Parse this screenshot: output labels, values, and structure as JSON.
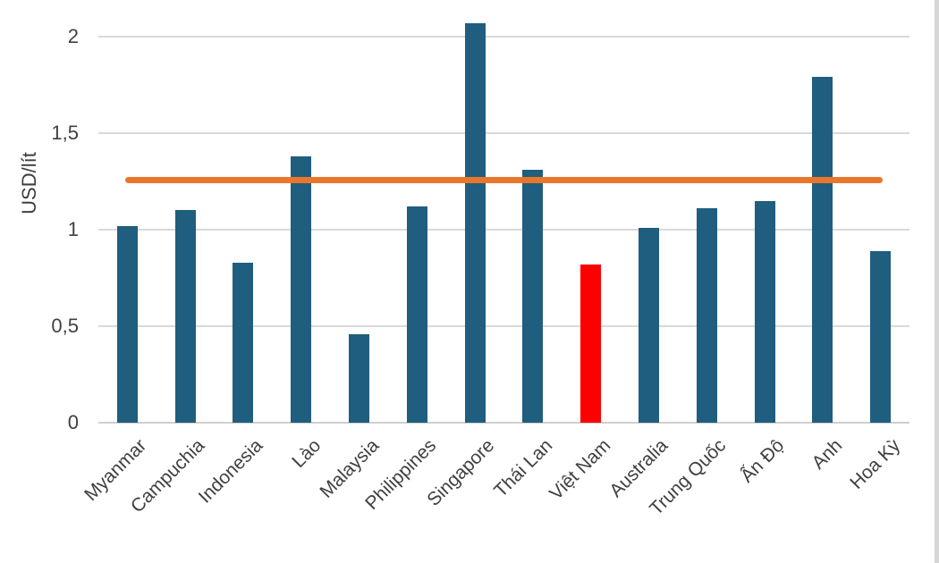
{
  "chart_data": {
    "type": "bar",
    "title": "",
    "xlabel": "",
    "ylabel": "USD/lít",
    "categories": [
      "Myanmar",
      "Campuchia",
      "Indonesia",
      "Lào",
      "Malaysia",
      "Philippines",
      "Singapore",
      "Thái Lan",
      "Việt Nam",
      "Australia",
      "Trung Quốc",
      "Ấn Độ",
      "Anh",
      "Hoa Kỳ"
    ],
    "values": [
      1.02,
      1.1,
      0.83,
      1.38,
      0.46,
      1.12,
      2.07,
      1.31,
      0.82,
      1.01,
      1.11,
      1.15,
      1.79,
      0.89
    ],
    "highlighted_category": "Việt Nam",
    "reference_line": {
      "value": 1.26
    },
    "yticks": [
      {
        "value": 0,
        "label": "0"
      },
      {
        "value": 0.5,
        "label": "0,5"
      },
      {
        "value": 1,
        "label": "1"
      },
      {
        "value": 1.5,
        "label": "1,5"
      },
      {
        "value": 2,
        "label": "2"
      }
    ],
    "ylim": [
      0,
      2.16
    ],
    "grid": true,
    "legend_position": "none",
    "colors": {
      "bar": "#1f5e7e",
      "highlight": "#ff0000",
      "reference_line": "#e8772c",
      "gridline": "#d9d9d9",
      "axis_line": "#cfcfcf",
      "text": "#404040"
    }
  }
}
